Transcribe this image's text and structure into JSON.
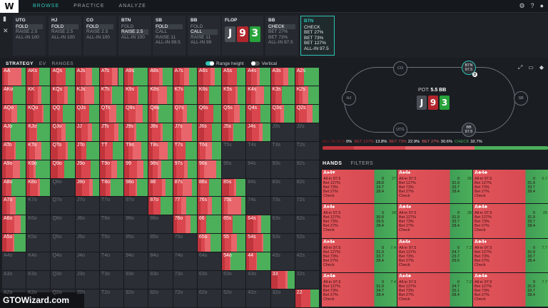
{
  "nav": {
    "logo": "W",
    "items": [
      "BROWSE",
      "PRACTICE",
      "ANALYZE"
    ],
    "active": 0
  },
  "top_icons": [
    "gear-icon",
    "help-icon",
    "profile-icon"
  ],
  "positions": [
    {
      "name": "UTG",
      "actions": [
        "FOLD",
        "RAISE 2.5",
        "ALL-IN 100"
      ],
      "selected": 0
    },
    {
      "name": "HJ",
      "actions": [
        "FOLD",
        "RAISE 2.5",
        "ALL-IN 100"
      ],
      "selected": 0
    },
    {
      "name": "CO",
      "actions": [
        "FOLD",
        "RAISE 2.5",
        "ALL-IN 100"
      ],
      "selected": 0
    },
    {
      "name": "BTN",
      "actions": [
        "FOLD",
        "RAISE 2.5",
        "ALL-IN 100"
      ],
      "selected": 1
    },
    {
      "name": "SB",
      "actions": [
        "FOLD",
        "CALL",
        "RAISE 11",
        "ALL-IN 99.5"
      ],
      "selected": 0
    },
    {
      "name": "BB",
      "actions": [
        "FOLD",
        "CALL",
        "RAISE 11",
        "ALL-IN 99"
      ],
      "selected": 1
    }
  ],
  "flop": {
    "label": "FLOP",
    "cards": [
      "J",
      "9",
      "3"
    ]
  },
  "bb_decision": {
    "name": "BB",
    "actions": [
      "CHECK",
      "BET 27%",
      "BET 73%",
      "ALL-IN 97.5"
    ],
    "selected": 0
  },
  "btn_decision": {
    "name": "BTN",
    "actions": [
      "CHECK",
      "BET 27%",
      "BET 73%",
      "BET 127%",
      "ALL-IN 97.5"
    ]
  },
  "grid_header": {
    "tabs": [
      "STRATEGY",
      "EV",
      "RANGES"
    ],
    "active": 0,
    "toggle1": "Range height",
    "toggle2": "Vertical"
  },
  "colors": {
    "allin": "#8e1d24",
    "bet127": "#c0343c",
    "bet73": "#d9464e",
    "bet27": "#e8666b",
    "check": "#4caf5a",
    "accent": "#2ec4b6"
  },
  "grid": {
    "ranks": [
      "A",
      "K",
      "Q",
      "J",
      "T",
      "9",
      "8",
      "7",
      "6",
      "5",
      "4",
      "3",
      "2"
    ],
    "labels": [
      [
        "AA",
        "AKs",
        "AQs",
        "AJs",
        "ATs",
        "A9s",
        "A8s",
        "A7s",
        "A6s",
        "A5s",
        "A4s",
        "A3s",
        "A2s"
      ],
      [
        "AKo",
        "KK",
        "KQs",
        "KJs",
        "KTs",
        "K9s",
        "K8s",
        "K7s",
        "K6s",
        "K5s",
        "K4s",
        "K3s",
        "K2s"
      ],
      [
        "AQo",
        "KQo",
        "QQ",
        "QJs",
        "QTs",
        "Q9s",
        "Q8s",
        "Q7s",
        "Q6s",
        "Q5s",
        "Q4s",
        "Q3s",
        "Q2s"
      ],
      [
        "AJo",
        "KJo",
        "QJo",
        "JJ",
        "JTs",
        "J9s",
        "J8s",
        "J7s",
        "J6s",
        "J5s",
        "J4s",
        "J3s",
        "J2s"
      ],
      [
        "ATo",
        "KTo",
        "QTo",
        "JTo",
        "TT",
        "T9s",
        "T8s",
        "T7s",
        "T6s",
        "T5s",
        "T4s",
        "T3s",
        "T2s"
      ],
      [
        "A9o",
        "K9o",
        "Q9o",
        "J9o",
        "T9o",
        "99",
        "98s",
        "97s",
        "96s",
        "95s",
        "94s",
        "93s",
        "92s"
      ],
      [
        "A8o",
        "K8o",
        "Q8o",
        "J8o",
        "T8o",
        "98o",
        "88",
        "87s",
        "86s",
        "85s",
        "84s",
        "83s",
        "82s"
      ],
      [
        "A7o",
        "K7o",
        "Q7o",
        "J7o",
        "T7o",
        "97o",
        "87o",
        "77",
        "76s",
        "75s",
        "74s",
        "73s",
        "72s"
      ],
      [
        "A6o",
        "K6o",
        "Q6o",
        "J6o",
        "T6o",
        "96o",
        "86o",
        "76o",
        "66",
        "65s",
        "64s",
        "63s",
        "62s"
      ],
      [
        "A5o",
        "K5o",
        "Q5o",
        "J5o",
        "T5o",
        "95o",
        "85o",
        "75o",
        "65o",
        "55",
        "54s",
        "53s",
        "52s"
      ],
      [
        "A4o",
        "K4o",
        "Q4o",
        "J4o",
        "T4o",
        "94o",
        "84o",
        "74o",
        "64o",
        "54o",
        "44",
        "43s",
        "42s"
      ],
      [
        "A3o",
        "K3o",
        "Q3o",
        "J3o",
        "T3o",
        "93o",
        "83o",
        "73o",
        "63o",
        "53o",
        "43o",
        "33",
        "32s"
      ],
      [
        "A2o",
        "K2o",
        "Q2o",
        "J2o",
        "T2o",
        "92o",
        "82o",
        "72o",
        "62o",
        "52o",
        "42o",
        "32o",
        "22"
      ]
    ],
    "active_map": [
      [
        1,
        1,
        1,
        1,
        1,
        1,
        1,
        1,
        1,
        1,
        1,
        1,
        1
      ],
      [
        1,
        1,
        1,
        1,
        1,
        1,
        1,
        1,
        1,
        1,
        1,
        1,
        1
      ],
      [
        1,
        1,
        1,
        1,
        1,
        1,
        1,
        1,
        1,
        1,
        1,
        1,
        1
      ],
      [
        1,
        1,
        1,
        1,
        1,
        1,
        1,
        1,
        1,
        1,
        1,
        0,
        0
      ],
      [
        1,
        1,
        1,
        1,
        1,
        1,
        1,
        1,
        1,
        0,
        0,
        0,
        0
      ],
      [
        1,
        1,
        1,
        1,
        1,
        1,
        1,
        1,
        1,
        0,
        0,
        0,
        0
      ],
      [
        1,
        1,
        0,
        1,
        1,
        1,
        1,
        1,
        1,
        1,
        0,
        0,
        0
      ],
      [
        1,
        0,
        0,
        0,
        0,
        0,
        1,
        1,
        1,
        1,
        0,
        0,
        0
      ],
      [
        1,
        0,
        0,
        0,
        0,
        0,
        0,
        1,
        1,
        1,
        1,
        0,
        0
      ],
      [
        1,
        0,
        0,
        0,
        0,
        0,
        0,
        0,
        1,
        1,
        1,
        0,
        0
      ],
      [
        0,
        0,
        0,
        0,
        0,
        0,
        0,
        0,
        0,
        1,
        1,
        0,
        0
      ],
      [
        0,
        0,
        0,
        0,
        0,
        0,
        0,
        0,
        0,
        0,
        0,
        1,
        0
      ],
      [
        0,
        0,
        0,
        0,
        0,
        0,
        0,
        0,
        0,
        0,
        0,
        0,
        1
      ]
    ]
  },
  "table": {
    "seats": [
      {
        "name": "CO",
        "stack": ""
      },
      {
        "name": "BTN",
        "stack": "97.5"
      },
      {
        "name": "HJ",
        "stack": ""
      },
      {
        "name": "SB",
        "stack": ""
      },
      {
        "name": "UTG",
        "stack": ""
      },
      {
        "name": "BB",
        "stack": "97.5"
      }
    ],
    "dealer": "D",
    "pot_label": "POT:",
    "pot_value": "5.5 BB",
    "board": [
      "J",
      "9",
      "3"
    ],
    "icons": [
      "expand-icon",
      "present-icon",
      "learn-icon"
    ]
  },
  "frequency": {
    "items": [
      {
        "label": "ALL-IN 97.5",
        "value": "0%",
        "color": "#8e1d24",
        "pct": 0
      },
      {
        "label": "BET 127%",
        "value": "13.8%",
        "color": "#c0343c",
        "pct": 13.8
      },
      {
        "label": "BET 73%",
        "value": "22.9%",
        "color": "#d9464e",
        "pct": 22.9
      },
      {
        "label": "BET 27%",
        "value": "30.6%",
        "color": "#e8666b",
        "pct": 30.6
      },
      {
        "label": "CHECK",
        "value": "32.7%",
        "color": "#4caf5a",
        "pct": 32.7
      }
    ]
  },
  "hands_tabs": [
    "HANDS",
    "FILTERS"
  ],
  "hands": [
    {
      "combo": "A♦4♥",
      "vals": [
        "0",
        "28.8",
        "33.7",
        "28.4"
      ],
      "best": "27"
    },
    {
      "combo": "A♠4♠",
      "vals": [
        "0",
        "31.9",
        "33.7",
        "28.4"
      ],
      "best": "28"
    },
    {
      "combo": "A♣4♣",
      "vals": [
        "0",
        "31.9",
        "33.7",
        "28.4"
      ],
      "best": "6.7"
    },
    {
      "combo": "A♦4♠",
      "vals": [
        "0",
        "30.8",
        "26.5",
        "28.4"
      ],
      "best": "28"
    },
    {
      "combo": "A♣4♠",
      "vals": [
        "0",
        "31.9",
        "33.7",
        "28.4"
      ],
      "best": "28"
    },
    {
      "combo": "A♣4♣",
      "vals": [
        "0",
        "31.9",
        "33.7",
        "28.4"
      ],
      "best": "28"
    },
    {
      "combo": "A♦4♠",
      "vals": [
        "0",
        "31.9",
        "33.7",
        "28.4"
      ],
      "best": "7.4"
    },
    {
      "combo": "A♠4♦",
      "vals": [
        "0",
        "24.7",
        "23.7",
        "29.6"
      ],
      "best": "7.2"
    },
    {
      "combo": "A♣4♦",
      "vals": [
        "0",
        "31.9",
        "33.7",
        "28.4"
      ],
      "best": "7.7"
    },
    {
      "combo": "A♦4♣",
      "vals": [
        "0",
        "31.9",
        "24.7",
        "28.4"
      ],
      "best": "7.4"
    },
    {
      "combo": "A♠4♣",
      "vals": [
        "0",
        "24.7",
        "26.1",
        "28.4"
      ],
      "best": "7.2"
    },
    {
      "combo": "A♣4♣",
      "vals": [
        "0",
        "31.9",
        "33.7",
        "28.4"
      ],
      "best": "7.7"
    }
  ],
  "hand_rows": [
    "All-in 97.5",
    "Bet 127%",
    "Bet 73%",
    "Bet 27%",
    "Check"
  ],
  "watermark": "GTOWizard.com"
}
